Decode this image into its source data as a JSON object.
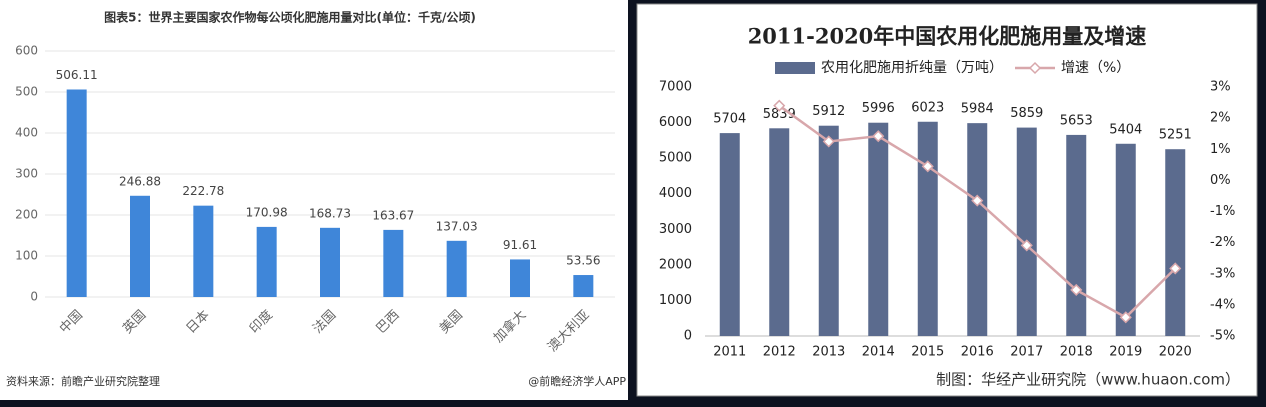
{
  "chart_data": [
    {
      "type": "bar",
      "title": "图表5：世界主要国家农作物每公顷化肥施用量对比(单位：千克/公顷)",
      "categories": [
        "中国",
        "英国",
        "日本",
        "印度",
        "法国",
        "巴西",
        "美国",
        "加拿大",
        "澳大利亚"
      ],
      "values": [
        506.11,
        246.88,
        222.78,
        170.98,
        168.73,
        163.67,
        137.03,
        91.61,
        53.56
      ],
      "color": "#3f86d9",
      "ylim": [
        0,
        600
      ],
      "yticks": [
        0,
        100,
        200,
        300,
        400,
        500,
        600
      ],
      "grid": true,
      "source": "资料来源：前瞻产业研究院整理",
      "credit": "@前瞻经济学人APP"
    },
    {
      "type": "bar-line",
      "title": "2011-2020年中国农用化肥施用量及增速",
      "categories": [
        "2011",
        "2012",
        "2013",
        "2014",
        "2015",
        "2016",
        "2017",
        "2018",
        "2019",
        "2020"
      ],
      "series": [
        {
          "name": "农用化肥施用折纯量（万吨）",
          "color": "#5b6b8e",
          "type": "bar",
          "values": [
            5704,
            5839,
            5912,
            5996,
            6023,
            5984,
            5859,
            5653,
            5404,
            5251
          ]
        },
        {
          "name": "增速（%）",
          "color": "#d8a7ab",
          "type": "line",
          "axis": "y2",
          "values": [
            null,
            2.4,
            1.25,
            1.42,
            0.45,
            -0.65,
            -2.09,
            -3.52,
            -4.4,
            -2.83
          ]
        }
      ],
      "ylim": [
        0,
        7000
      ],
      "yticks": [
        0,
        1000,
        2000,
        3000,
        4000,
        5000,
        6000,
        7000
      ],
      "y2lim": [
        -5,
        3
      ],
      "y2ticks": [
        {
          "value": -5,
          "label": "-5%"
        },
        {
          "value": -4,
          "label": "-4%"
        },
        {
          "value": -3,
          "label": "-3%"
        },
        {
          "value": -2,
          "label": "-2%"
        },
        {
          "value": -1,
          "label": "-1%"
        },
        {
          "value": 0,
          "label": "0%"
        },
        {
          "value": 1,
          "label": "1%"
        },
        {
          "value": 2,
          "label": "2%"
        },
        {
          "value": 3,
          "label": "3%"
        }
      ],
      "grid": false,
      "credit": "制图：华经产业研究院（www.huaon.com）"
    }
  ]
}
